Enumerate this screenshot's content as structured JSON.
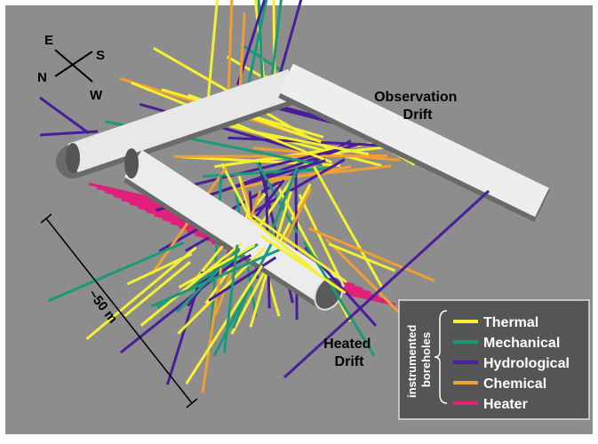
{
  "compass": {
    "east": "E",
    "south": "S",
    "north": "N",
    "west": "W"
  },
  "observation_drift": {
    "lines": [
      "Observation",
      "Drift"
    ]
  },
  "heated_drift": {
    "lines": [
      "Heated",
      "Drift"
    ]
  },
  "scale": {
    "label": "~50 m"
  },
  "legend": {
    "title_lines": [
      "instrumented",
      "boreholes"
    ],
    "items": [
      {
        "name": "Thermal",
        "color": "#f5f032"
      },
      {
        "name": "Mechanical",
        "color": "#1a9a78"
      },
      {
        "name": "Hydrological",
        "color": "#4a1e9a"
      },
      {
        "name": "Chemical",
        "color": "#f0a030"
      },
      {
        "name": "Heater",
        "color": "#e0207a"
      }
    ]
  }
}
